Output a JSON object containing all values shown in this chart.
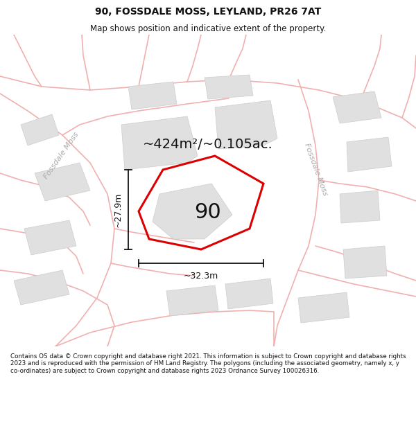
{
  "title": "90, FOSSDALE MOSS, LEYLAND, PR26 7AT",
  "subtitle": "Map shows position and indicative extent of the property.",
  "footer": "Contains OS data © Crown copyright and database right 2021. This information is subject to Crown copyright and database rights 2023 and is reproduced with the permission of HM Land Registry. The polygons (including the associated geometry, namely x, y co-ordinates) are subject to Crown copyright and database rights 2023 Ordnance Survey 100026316.",
  "bg_color": "#ffffff",
  "map_bg": "#ffffff",
  "road_color": "#f0b0b0",
  "road_lw": 1.0,
  "building_color": "#e0e0e0",
  "building_edge": "#cccccc",
  "plot_color": "#dd0000",
  "plot_label": "90",
  "area_text": "~424m²/~0.105ac.",
  "dim_width": "~32.3m",
  "dim_height": "~27.9m",
  "road_label_left": "Fossdale Moss",
  "road_label_right": "Fossdale Moss",
  "fig_width": 6.0,
  "fig_height": 6.25,
  "dpi": 100,
  "title_fontsize": 10,
  "subtitle_fontsize": 8.5
}
